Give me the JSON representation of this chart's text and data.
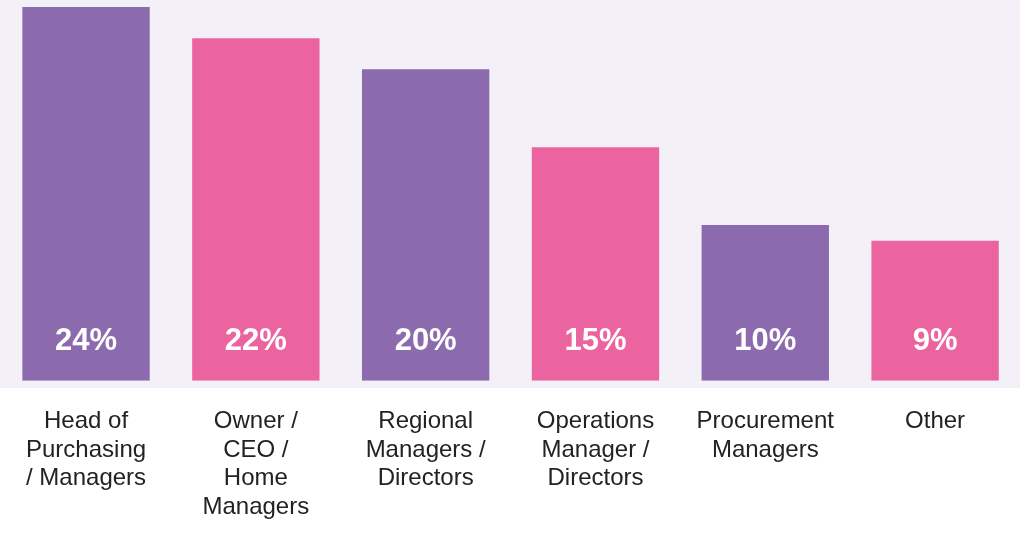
{
  "chart_data": {
    "type": "bar",
    "categories": [
      "Head of Purchasing / Managers",
      "Owner / CEO / Home Managers",
      "Regional Managers / Directors",
      "Operations Manager / Directors",
      "Procurement Managers",
      "Other"
    ],
    "values": [
      24,
      22,
      20,
      15,
      10,
      9
    ],
    "colors": [
      "#8b6bae",
      "#eb64a0",
      "#8b6bae",
      "#eb64a0",
      "#8b6bae",
      "#eb64a0"
    ],
    "value_labels": [
      "24%",
      "22%",
      "20%",
      "15%",
      "10%",
      "9%"
    ],
    "tick_labels": "x",
    "grid": false,
    "legend": false
  }
}
